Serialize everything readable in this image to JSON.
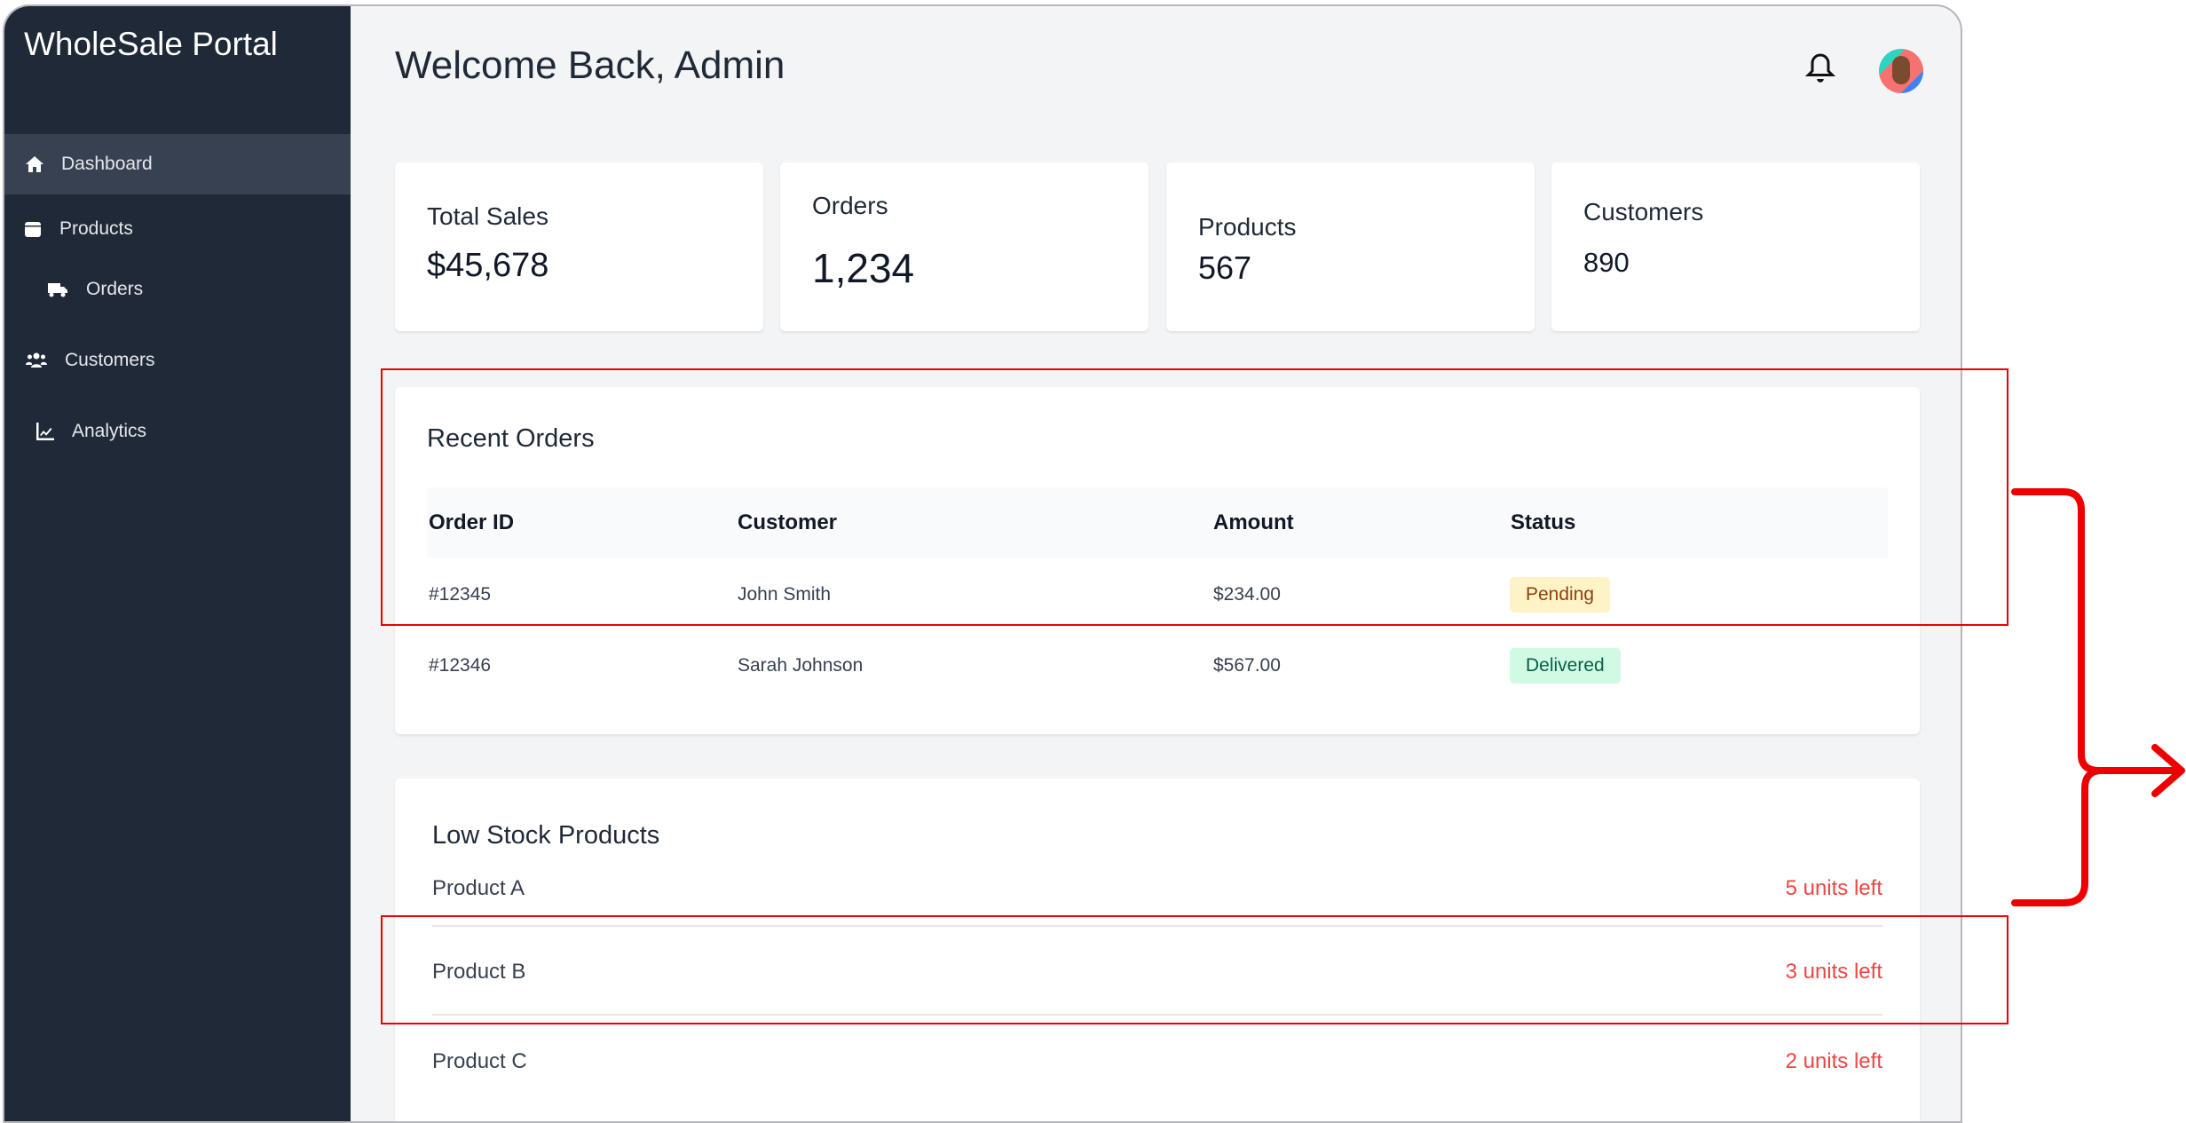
{
  "sidebar": {
    "brand": "WholeSale Portal",
    "items": [
      {
        "label": "Dashboard",
        "icon": "home-icon",
        "active": true
      },
      {
        "label": "Products",
        "icon": "box-icon"
      },
      {
        "label": "Orders",
        "icon": "truck-icon"
      },
      {
        "label": "Customers",
        "icon": "users-icon"
      },
      {
        "label": "Analytics",
        "icon": "chart-line-icon"
      }
    ]
  },
  "header": {
    "title": "Welcome Back, Admin"
  },
  "stats": [
    {
      "label": "Total Sales",
      "value": "$45,678"
    },
    {
      "label": "Orders",
      "value": "1,234"
    },
    {
      "label": "Products",
      "value": "567"
    },
    {
      "label": "Customers",
      "value": "890"
    }
  ],
  "recent_orders": {
    "title": "Recent Orders",
    "columns": [
      "Order ID",
      "Customer",
      "Amount",
      "Status"
    ],
    "rows": [
      {
        "id": "#12345",
        "customer": "John Smith",
        "amount": "$234.00",
        "status": "Pending"
      },
      {
        "id": "#12346",
        "customer": "Sarah Johnson",
        "amount": "$567.00",
        "status": "Delivered"
      }
    ]
  },
  "low_stock": {
    "title": "Low Stock Products",
    "items": [
      {
        "name": "Product A",
        "stock": "5 units left"
      },
      {
        "name": "Product B",
        "stock": "3 units left"
      },
      {
        "name": "Product C",
        "stock": "2 units left"
      }
    ]
  },
  "colors": {
    "sidebar": "#1f2937",
    "accent_red": "#ef4444",
    "annotation": "#ee0000",
    "pending_bg": "#fef3c7",
    "delivered_bg": "#d1fae5"
  }
}
